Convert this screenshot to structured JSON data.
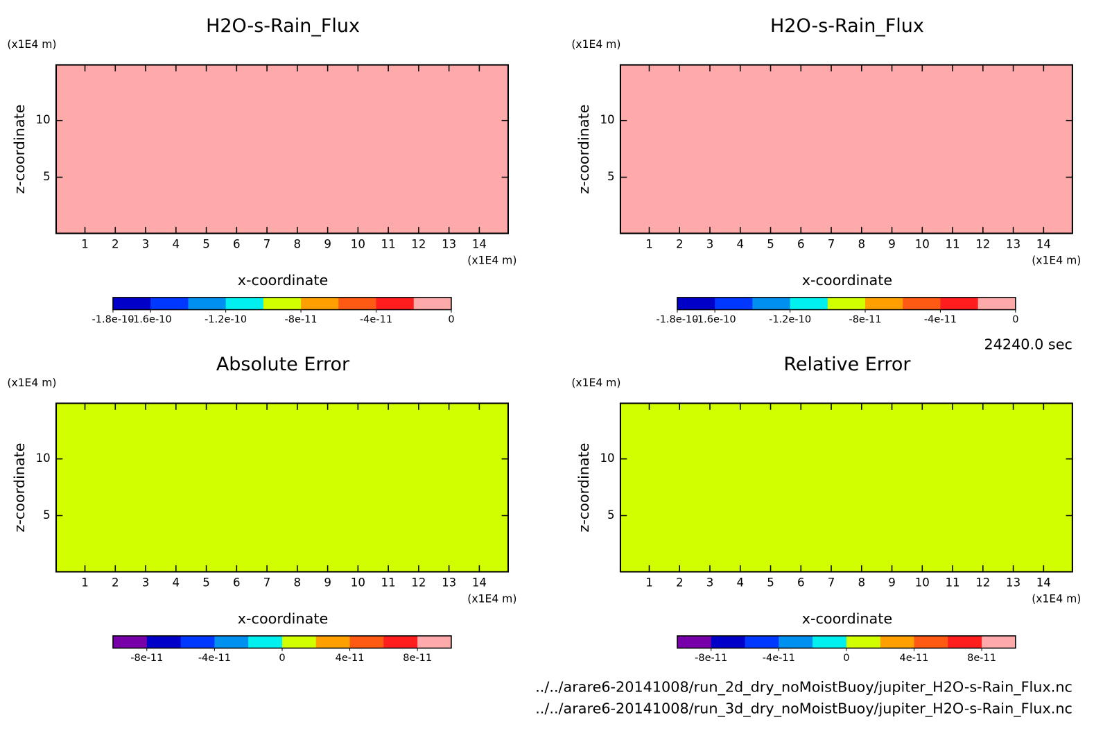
{
  "chart_data": [
    {
      "type": "heatmap",
      "title": "H2O-s-Rain_Flux",
      "xlabel": "x-coordinate",
      "ylabel": "z-coordinate",
      "x_unit": "(x1E4 m)",
      "y_unit": "(x1E4 m)",
      "xlim": [
        0.05,
        14.95
      ],
      "ylim": [
        0.05,
        14.9
      ],
      "xticks": [
        1,
        2,
        3,
        4,
        5,
        6,
        7,
        8,
        9,
        10,
        11,
        12,
        13,
        14
      ],
      "yticks": [
        5,
        10
      ],
      "field_value": 0,
      "colorbar": {
        "clim": [
          -1.8e-10,
          0
        ],
        "colors": [
          "#0000c8",
          "#0038ff",
          "#0090f0",
          "#00f0f0",
          "#d2ff00",
          "#ffa000",
          "#ff5a14",
          "#ff1e1e",
          "#ffaaaa"
        ],
        "ticks": [
          -1.8e-10,
          -1.6e-10,
          -1.2e-10,
          -8e-11,
          -4e-11,
          0
        ]
      }
    },
    {
      "type": "heatmap",
      "title": "H2O-s-Rain_Flux",
      "xlabel": "x-coordinate",
      "ylabel": "z-coordinate",
      "x_unit": "(x1E4 m)",
      "y_unit": "(x1E4 m)",
      "xlim": [
        0.05,
        14.95
      ],
      "ylim": [
        0.05,
        14.9
      ],
      "xticks": [
        1,
        2,
        3,
        4,
        5,
        6,
        7,
        8,
        9,
        10,
        11,
        12,
        13,
        14
      ],
      "yticks": [
        5,
        10
      ],
      "field_value": 0,
      "colorbar": {
        "clim": [
          -1.8e-10,
          0
        ],
        "colors": [
          "#0000c8",
          "#0038ff",
          "#0090f0",
          "#00f0f0",
          "#d2ff00",
          "#ffa000",
          "#ff5a14",
          "#ff1e1e",
          "#ffaaaa"
        ],
        "ticks": [
          -1.8e-10,
          -1.6e-10,
          -1.2e-10,
          -8e-11,
          -4e-11,
          0
        ]
      }
    },
    {
      "type": "heatmap",
      "title": "Absolute Error",
      "xlabel": "x-coordinate",
      "ylabel": "z-coordinate",
      "x_unit": "(x1E4 m)",
      "y_unit": "(x1E4 m)",
      "xlim": [
        0.05,
        14.95
      ],
      "ylim": [
        0.05,
        14.9
      ],
      "xticks": [
        1,
        2,
        3,
        4,
        5,
        6,
        7,
        8,
        9,
        10,
        11,
        12,
        13,
        14
      ],
      "yticks": [
        5,
        10
      ],
      "field_value": 0,
      "colorbar": {
        "clim": [
          -1e-10,
          1e-10
        ],
        "colors": [
          "#7800a8",
          "#0000c8",
          "#0038ff",
          "#0090f0",
          "#00f0f0",
          "#d2ff00",
          "#ffa000",
          "#ff5a14",
          "#ff1e1e",
          "#ffaaaa"
        ],
        "ticks": [
          -8e-11,
          -4e-11,
          0,
          4e-11,
          8e-11
        ]
      }
    },
    {
      "type": "heatmap",
      "title": "Relative Error",
      "xlabel": "x-coordinate",
      "ylabel": "z-coordinate",
      "x_unit": "(x1E4 m)",
      "y_unit": "(x1E4 m)",
      "xlim": [
        0.05,
        14.95
      ],
      "ylim": [
        0.05,
        14.9
      ],
      "xticks": [
        1,
        2,
        3,
        4,
        5,
        6,
        7,
        8,
        9,
        10,
        11,
        12,
        13,
        14
      ],
      "yticks": [
        5,
        10
      ],
      "field_value": 0,
      "colorbar": {
        "clim": [
          -1e-10,
          1e-10
        ],
        "colors": [
          "#7800a8",
          "#0000c8",
          "#0038ff",
          "#0090f0",
          "#00f0f0",
          "#d2ff00",
          "#ffa000",
          "#ff5a14",
          "#ff1e1e",
          "#ffaaaa"
        ],
        "ticks": [
          -8e-11,
          -4e-11,
          0,
          4e-11,
          8e-11
        ]
      }
    }
  ],
  "time_label": "24240.0 sec",
  "files": [
    "../../arare6-20141008/run_2d_dry_noMoistBuoy/jupiter_H2O-s-Rain_Flux.nc",
    "../../arare6-20141008/run_3d_dry_noMoistBuoy/jupiter_H2O-s-Rain_Flux.nc"
  ]
}
